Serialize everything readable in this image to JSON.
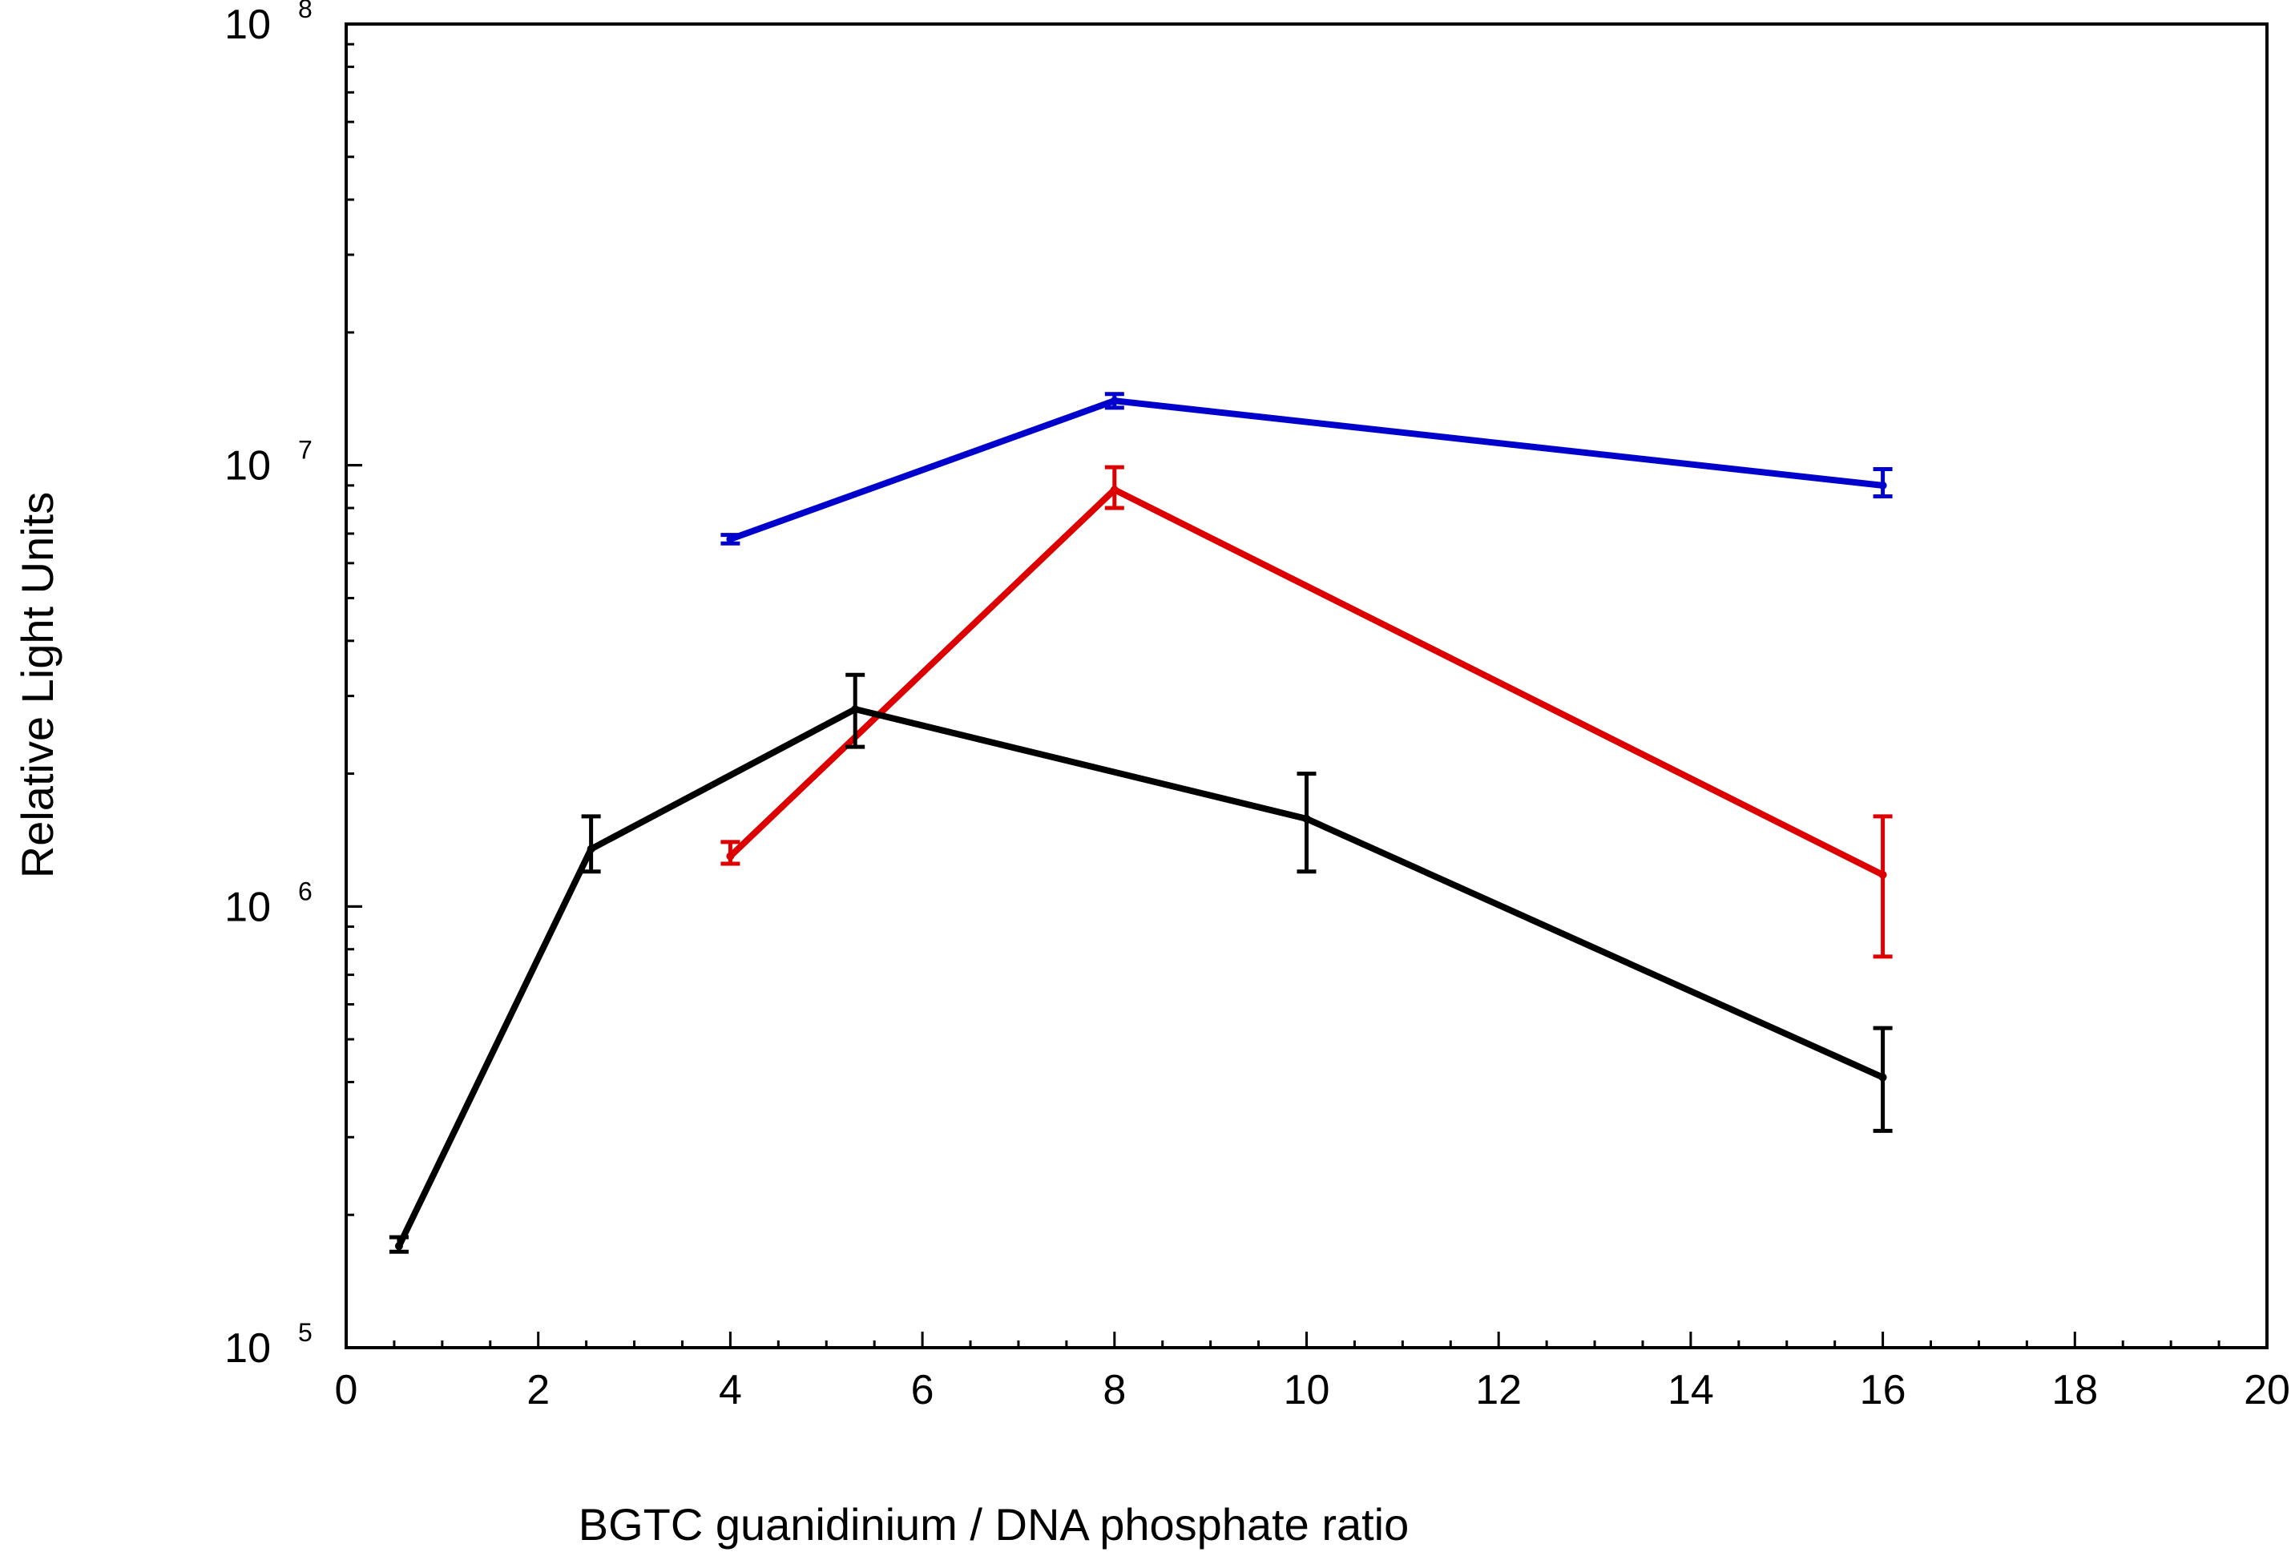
{
  "chart_data": {
    "type": "line",
    "title": "",
    "xlabel": "BGTC guanidinium / DNA phosphate ratio",
    "ylabel": "Relative Light Units",
    "xlim": [
      0,
      20
    ],
    "ylim": [
      100000,
      100000000
    ],
    "yscale": "log",
    "grid": false,
    "legend": "none",
    "x_ticks": [
      {
        "value": 0,
        "label": "0"
      },
      {
        "value": 2,
        "label": "2"
      },
      {
        "value": 4,
        "label": "4"
      },
      {
        "value": 6,
        "label": "6"
      },
      {
        "value": 8,
        "label": "8"
      },
      {
        "value": 10,
        "label": "10"
      },
      {
        "value": 12,
        "label": "12"
      },
      {
        "value": 14,
        "label": "14"
      },
      {
        "value": 16,
        "label": "16"
      },
      {
        "value": 18,
        "label": "18"
      },
      {
        "value": 20,
        "label": "20"
      }
    ],
    "y_ticks": [
      {
        "value": 100000,
        "base": "10",
        "exp": "5"
      },
      {
        "value": 1000000,
        "base": "10",
        "exp": "6"
      },
      {
        "value": 10000000,
        "base": "10",
        "exp": "7"
      },
      {
        "value": 100000000,
        "base": "10",
        "exp": "8"
      }
    ],
    "series": [
      {
        "name": "blue",
        "color": "#0000cc",
        "points": [
          {
            "x": 4,
            "y": 6800000,
            "lo": 6650000,
            "hi": 6950000
          },
          {
            "x": 8,
            "y": 14000000,
            "lo": 13500000,
            "hi": 14500000
          },
          {
            "x": 16,
            "y": 9000000,
            "lo": 8500000,
            "hi": 9800000
          }
        ]
      },
      {
        "name": "red",
        "color": "#dd0000",
        "points": [
          {
            "x": 4,
            "y": 1300000,
            "lo": 1250000,
            "hi": 1400000
          },
          {
            "x": 8,
            "y": 8800000,
            "lo": 8000000,
            "hi": 9900000
          },
          {
            "x": 16,
            "y": 1180000,
            "lo": 770000,
            "hi": 1600000
          }
        ]
      },
      {
        "name": "black",
        "color": "#000000",
        "points": [
          {
            "x": 0.55,
            "y": 170000,
            "lo": 165000,
            "hi": 178000
          },
          {
            "x": 2.55,
            "y": 1350000,
            "lo": 1200000,
            "hi": 1600000
          },
          {
            "x": 5.3,
            "y": 2800000,
            "lo": 2300000,
            "hi": 3350000
          },
          {
            "x": 10,
            "y": 1580000,
            "lo": 1200000,
            "hi": 2000000
          },
          {
            "x": 16,
            "y": 410000,
            "lo": 310000,
            "hi": 530000
          }
        ]
      }
    ]
  }
}
